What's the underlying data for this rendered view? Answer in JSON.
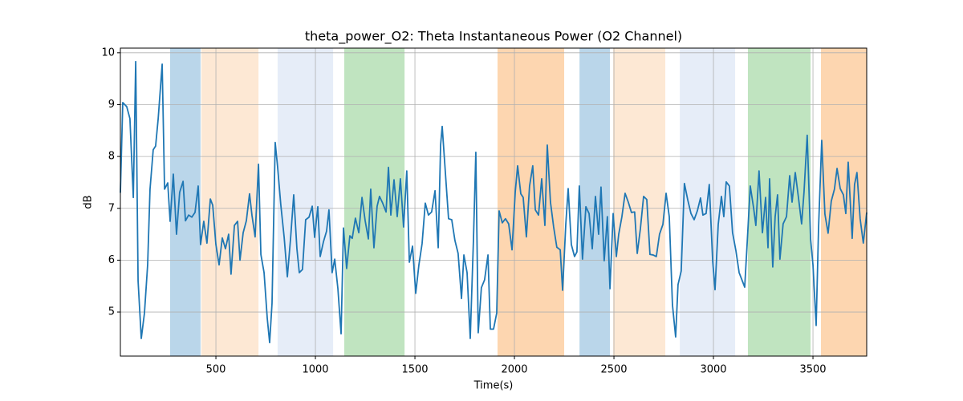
{
  "chart_data": {
    "type": "line",
    "title": "theta_power_O2: Theta Instantaneous Power (O2 Channel)",
    "x_label": "Time(s)",
    "y_label": "dB",
    "color": "#1f77b4",
    "grid": true,
    "xlim": [
      20,
      3770
    ],
    "ylim": [
      4.15,
      10.09
    ],
    "xticks": [
      500,
      1000,
      1500,
      2000,
      2500,
      3000,
      3500
    ],
    "yticks": [
      5,
      6,
      7,
      8,
      9,
      10
    ],
    "spans": [
      {
        "start": 270,
        "end": 423,
        "color": "#bad6ea"
      },
      {
        "start": 427,
        "end": 714,
        "color": "#fde8d4"
      },
      {
        "start": 810,
        "end": 1089,
        "color": "#e6edf8"
      },
      {
        "start": 1145,
        "end": 1448,
        "color": "#c0e4c0"
      },
      {
        "start": 1915,
        "end": 2250,
        "color": "#fdd6b0"
      },
      {
        "start": 2327,
        "end": 2480,
        "color": "#bad6ea"
      },
      {
        "start": 2496,
        "end": 2758,
        "color": "#fde8d4"
      },
      {
        "start": 2831,
        "end": 3109,
        "color": "#e6edf8"
      },
      {
        "start": 3173,
        "end": 3488,
        "color": "#c0e4c0"
      },
      {
        "start": 3540,
        "end": 3770,
        "color": "#fdd6b0"
      }
    ],
    "x": [
      20,
      32,
      52,
      68,
      85,
      97,
      109,
      125,
      141,
      157,
      169,
      185,
      197,
      210,
      230,
      242,
      258,
      270,
      286,
      302,
      318,
      335,
      347,
      363,
      379,
      395,
      411,
      423,
      439,
      455,
      472,
      484,
      500,
      516,
      532,
      548,
      564,
      576,
      593,
      609,
      621,
      637,
      653,
      669,
      681,
      697,
      714,
      726,
      742,
      758,
      770,
      782,
      798,
      810,
      826,
      843,
      859,
      875,
      891,
      907,
      919,
      935,
      951,
      968,
      984,
      996,
      1012,
      1024,
      1040,
      1056,
      1068,
      1084,
      1097,
      1113,
      1129,
      1141,
      1157,
      1173,
      1185,
      1201,
      1218,
      1234,
      1250,
      1266,
      1278,
      1294,
      1310,
      1322,
      1338,
      1355,
      1367,
      1379,
      1395,
      1411,
      1427,
      1443,
      1459,
      1472,
      1488,
      1504,
      1520,
      1536,
      1552,
      1568,
      1584,
      1601,
      1617,
      1629,
      1637,
      1653,
      1669,
      1685,
      1701,
      1717,
      1734,
      1746,
      1762,
      1778,
      1794,
      1806,
      1818,
      1834,
      1850,
      1867,
      1879,
      1895,
      1911,
      1923,
      1939,
      1955,
      1971,
      1988,
      2004,
      2016,
      2032,
      2044,
      2060,
      2076,
      2092,
      2105,
      2121,
      2137,
      2153,
      2165,
      2181,
      2197,
      2213,
      2230,
      2242,
      2258,
      2270,
      2286,
      2302,
      2314,
      2326,
      2342,
      2359,
      2375,
      2391,
      2407,
      2423,
      2435,
      2451,
      2467,
      2480,
      2496,
      2512,
      2524,
      2540,
      2556,
      2572,
      2588,
      2604,
      2617,
      2633,
      2649,
      2665,
      2681,
      2697,
      2713,
      2729,
      2746,
      2762,
      2778,
      2794,
      2810,
      2822,
      2838,
      2854,
      2871,
      2887,
      2903,
      2919,
      2935,
      2947,
      2963,
      2979,
      2996,
      3008,
      3024,
      3040,
      3052,
      3064,
      3080,
      3096,
      3113,
      3129,
      3145,
      3157,
      3169,
      3185,
      3202,
      3213,
      3229,
      3246,
      3262,
      3274,
      3282,
      3298,
      3310,
      3322,
      3334,
      3350,
      3367,
      3383,
      3395,
      3411,
      3427,
      3443,
      3455,
      3471,
      3488,
      3500,
      3516,
      3528,
      3544,
      3560,
      3576,
      3592,
      3608,
      3621,
      3637,
      3653,
      3665,
      3677,
      3697,
      3709,
      3721,
      3737,
      3753,
      3770
    ],
    "values": [
      7.3,
      9.04,
      8.96,
      8.73,
      7.21,
      9.83,
      5.6,
      4.49,
      4.98,
      5.91,
      7.37,
      8.13,
      8.2,
      8.73,
      9.78,
      7.37,
      7.49,
      6.75,
      7.66,
      6.5,
      7.31,
      7.52,
      6.76,
      6.87,
      6.83,
      6.92,
      7.43,
      6.3,
      6.75,
      6.33,
      7.18,
      7.06,
      6.3,
      5.91,
      6.43,
      6.22,
      6.5,
      5.73,
      6.67,
      6.75,
      6.0,
      6.53,
      6.76,
      7.28,
      6.87,
      6.45,
      7.85,
      6.11,
      5.76,
      4.88,
      4.41,
      5.17,
      8.27,
      7.8,
      7.07,
      6.44,
      5.68,
      6.41,
      7.26,
      6.22,
      5.76,
      5.82,
      6.78,
      6.83,
      7.04,
      6.44,
      7.03,
      6.07,
      6.35,
      6.56,
      6.97,
      5.76,
      6.02,
      5.45,
      4.58,
      6.62,
      5.84,
      6.47,
      6.42,
      6.81,
      6.53,
      7.21,
      6.76,
      6.41,
      7.37,
      6.24,
      7.04,
      7.23,
      7.1,
      6.93,
      7.79,
      6.87,
      7.55,
      6.84,
      7.57,
      6.64,
      7.72,
      5.96,
      6.27,
      5.36,
      5.91,
      6.32,
      7.1,
      6.87,
      6.93,
      7.34,
      6.24,
      8.22,
      8.58,
      7.69,
      6.8,
      6.78,
      6.38,
      6.13,
      5.26,
      6.1,
      5.76,
      4.49,
      6.38,
      8.08,
      4.6,
      5.47,
      5.62,
      6.1,
      4.67,
      4.67,
      4.98,
      6.95,
      6.72,
      6.8,
      6.7,
      6.2,
      7.31,
      7.82,
      7.28,
      7.21,
      6.45,
      7.43,
      7.82,
      6.97,
      6.87,
      7.57,
      6.67,
      8.22,
      7.12,
      6.64,
      6.25,
      6.2,
      5.42,
      6.69,
      7.38,
      6.3,
      6.07,
      6.16,
      7.43,
      6.02,
      7.03,
      6.9,
      6.22,
      7.23,
      6.5,
      7.41,
      5.99,
      6.84,
      5.45,
      6.9,
      6.07,
      6.5,
      6.84,
      7.29,
      7.12,
      6.92,
      6.93,
      6.13,
      6.61,
      7.23,
      7.17,
      6.11,
      6.1,
      6.07,
      6.5,
      6.69,
      7.29,
      6.84,
      5.14,
      4.52,
      5.53,
      5.79,
      7.48,
      7.16,
      6.9,
      6.78,
      6.95,
      7.2,
      6.87,
      6.9,
      7.46,
      5.99,
      5.43,
      6.69,
      7.23,
      6.84,
      7.51,
      7.43,
      6.53,
      6.18,
      5.76,
      5.6,
      5.48,
      6.3,
      7.43,
      7.0,
      6.67,
      7.72,
      6.53,
      7.21,
      6.24,
      7.57,
      5.87,
      6.84,
      7.26,
      6.02,
      6.7,
      6.84,
      7.63,
      7.12,
      7.69,
      7.21,
      6.7,
      7.31,
      8.41,
      6.41,
      5.91,
      4.74,
      6.61,
      8.31,
      6.89,
      6.52,
      7.14,
      7.37,
      7.77,
      7.38,
      7.26,
      6.9,
      7.89,
      6.42,
      7.46,
      7.69,
      6.8,
      6.33,
      6.92
    ]
  }
}
